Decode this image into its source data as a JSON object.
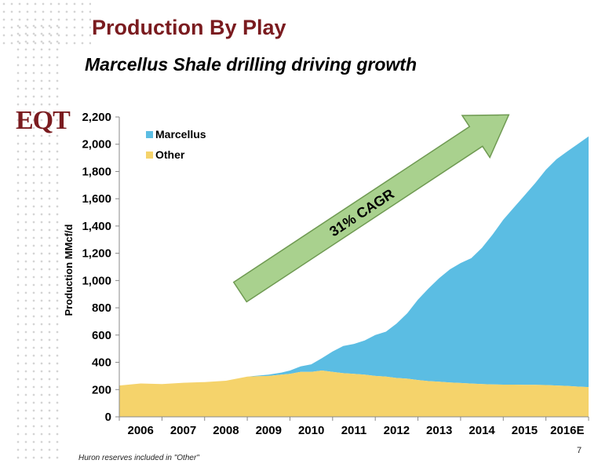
{
  "page": {
    "title": "Production By Play",
    "subtitle": "Marcellus Shale drilling driving growth",
    "logo_text": "EQT",
    "footnote": "Huron reserves included in \"Other\"",
    "page_number": "7"
  },
  "colors": {
    "title": "#7a1b1f",
    "marcellus": "#5bbde3",
    "other": "#f5d36b",
    "arrow_fill": "#a9d18e",
    "arrow_stroke": "#6f9a52"
  },
  "chart_data": {
    "type": "area",
    "stacked": true,
    "ylabel": "Production MMcf/d",
    "xlabel": "",
    "ylim": [
      0,
      2200
    ],
    "yticks": [
      0,
      200,
      400,
      600,
      800,
      1000,
      1200,
      1400,
      1600,
      1800,
      2000,
      2200
    ],
    "ytick_labels": [
      "0",
      "200",
      "400",
      "600",
      "800",
      "1,000",
      "1,200",
      "1,400",
      "1,600",
      "1,800",
      "2,000",
      "2,200"
    ],
    "xlim": [
      2005.5,
      2016.5
    ],
    "xtick_labels": [
      "2006",
      "2007",
      "2008",
      "2009",
      "2010",
      "2011",
      "2012",
      "2013",
      "2014",
      "2015",
      "2016E"
    ],
    "legend_position": "top-left",
    "grid": false,
    "annotation": "31% CAGR",
    "x": [
      2005.5,
      2006.0,
      2006.5,
      2007.0,
      2007.5,
      2008.0,
      2008.5,
      2009.0,
      2009.3,
      2009.5,
      2009.75,
      2010.0,
      2010.25,
      2010.5,
      2010.75,
      2011.0,
      2011.25,
      2011.5,
      2011.75,
      2012.0,
      2012.25,
      2012.5,
      2012.75,
      2013.0,
      2013.25,
      2013.5,
      2013.75,
      2014.0,
      2014.25,
      2014.5,
      2014.75,
      2015.0,
      2015.25,
      2015.5,
      2015.75,
      2016.0,
      2016.25,
      2016.5
    ],
    "series": [
      {
        "name": "Other",
        "values": [
          230,
          245,
          240,
          250,
          255,
          265,
          295,
          300,
          310,
          315,
          330,
          330,
          340,
          330,
          320,
          315,
          310,
          300,
          295,
          285,
          280,
          270,
          262,
          258,
          252,
          248,
          244,
          240,
          238,
          236,
          236,
          235,
          235,
          233,
          230,
          227,
          222,
          218
        ]
      },
      {
        "name": "Marcellus",
        "values": [
          0,
          0,
          0,
          0,
          0,
          0,
          0,
          10,
          15,
          25,
          40,
          55,
          90,
          150,
          200,
          220,
          250,
          300,
          330,
          400,
          480,
          590,
          680,
          760,
          830,
          880,
          920,
          1000,
          1100,
          1210,
          1300,
          1390,
          1480,
          1580,
          1660,
          1720,
          1780,
          1840
        ]
      }
    ]
  }
}
